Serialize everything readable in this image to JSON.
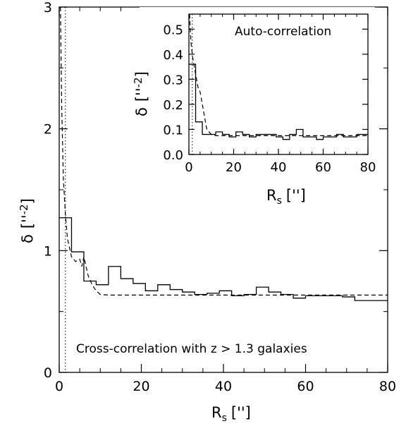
{
  "chart_data": [
    {
      "type": "line",
      "annotation": "Cross-correlation with z > 1.3 galaxies",
      "xlabel": "R",
      "xlabel_sub": "s",
      "xlabel_unit": "['']",
      "ylabel": "δ",
      "ylabel_unit": "[''",
      "ylabel_unit_sup": "-2",
      "ylabel_unit_close": "]",
      "xlim": [
        0,
        80
      ],
      "ylim": [
        0,
        3
      ],
      "xticks": [
        0,
        20,
        40,
        60,
        80
      ],
      "yticks": [
        0,
        1,
        2,
        3
      ],
      "xtick_labels": [
        "0",
        "20",
        "40",
        "60",
        "80"
      ],
      "ytick_labels": [
        "0",
        "1",
        "2",
        "3"
      ],
      "grid": false,
      "vertical_marker_x": 1.5,
      "series": [
        {
          "style": "solid-step",
          "bin_edges": [
            0,
            3,
            6,
            9,
            12,
            15,
            18,
            21,
            24,
            27,
            30,
            33,
            36,
            39,
            42,
            45,
            48,
            51,
            54,
            57,
            60,
            63,
            66,
            69,
            72,
            75,
            80
          ],
          "values": [
            1.27,
            0.99,
            0.75,
            0.72,
            0.87,
            0.77,
            0.73,
            0.67,
            0.72,
            0.68,
            0.66,
            0.64,
            0.65,
            0.67,
            0.63,
            0.64,
            0.7,
            0.66,
            0.64,
            0.61,
            0.63,
            0.63,
            0.63,
            0.62,
            0.59,
            0.59
          ]
        },
        {
          "style": "dashed",
          "x": [
            0.3,
            0.6,
            1.0,
            1.5,
            2,
            3,
            3.5,
            4,
            5,
            5.5,
            6,
            7,
            8,
            9,
            10,
            12,
            20,
            40,
            60,
            80
          ],
          "y": [
            3.0,
            2.2,
            1.6,
            1.3,
            1.1,
            0.95,
            0.93,
            0.91,
            0.93,
            0.87,
            0.95,
            0.8,
            0.72,
            0.67,
            0.64,
            0.635,
            0.635,
            0.635,
            0.635,
            0.635
          ]
        }
      ]
    },
    {
      "type": "line",
      "annotation": "Auto-correlation",
      "xlabel": "R",
      "xlabel_sub": "s",
      "xlabel_unit": "['']",
      "ylabel": "δ",
      "ylabel_unit": "[''",
      "ylabel_unit_sup": "-2",
      "ylabel_unit_close": "]",
      "xlim": [
        0,
        80
      ],
      "ylim": [
        0,
        0.56
      ],
      "xticks": [
        0,
        20,
        40,
        60,
        80
      ],
      "yticks": [
        0,
        0.1,
        0.2,
        0.3,
        0.4,
        0.5
      ],
      "xtick_labels": [
        "0",
        "20",
        "40",
        "60",
        "80"
      ],
      "ytick_labels": [
        "0.0",
        "0.1",
        "0.2",
        "0.3",
        "0.4",
        "0.5"
      ],
      "grid": false,
      "vertical_marker_x": 1.5,
      "series": [
        {
          "style": "solid-step",
          "bin_edges": [
            0,
            3,
            6,
            9,
            12,
            15,
            18,
            21,
            24,
            27,
            30,
            33,
            36,
            39,
            42,
            45,
            48,
            51,
            54,
            57,
            60,
            63,
            66,
            69,
            72,
            75,
            80
          ],
          "values": [
            0.36,
            0.13,
            0.08,
            0.08,
            0.09,
            0.08,
            0.07,
            0.09,
            0.08,
            0.07,
            0.08,
            0.08,
            0.08,
            0.07,
            0.06,
            0.08,
            0.1,
            0.07,
            0.07,
            0.06,
            0.07,
            0.07,
            0.08,
            0.07,
            0.07,
            0.08
          ]
        },
        {
          "style": "dashed",
          "x": [
            0.3,
            0.6,
            1.0,
            1.5,
            2,
            3,
            4,
            5,
            6,
            7,
            8,
            10,
            12,
            20,
            40,
            60,
            80
          ],
          "y": [
            0.56,
            0.5,
            0.44,
            0.4,
            0.37,
            0.32,
            0.27,
            0.25,
            0.2,
            0.15,
            0.1,
            0.08,
            0.075,
            0.075,
            0.075,
            0.075,
            0.075
          ]
        }
      ]
    }
  ]
}
